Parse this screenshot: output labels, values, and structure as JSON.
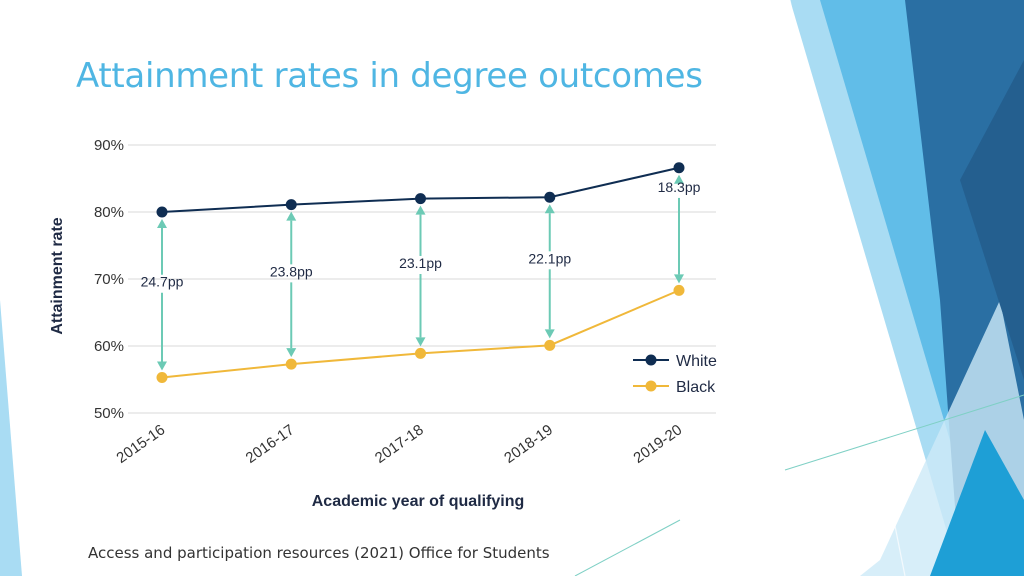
{
  "slide": {
    "title": "Attainment rates in degree outcomes",
    "footer": "Access and participation resources (2021) Office for Students"
  },
  "theme": {
    "title_color": "#4fb6e3",
    "white_series_color": "#0f2d52",
    "black_series_color": "#f0b83a",
    "arrow_color": "#6ccab5",
    "gridline_color": "#d9d9d9",
    "decor_light": "#a9dcf3",
    "decor_mid": "#55b7e5",
    "decor_dark": "#2a6fa3"
  },
  "chart_data": {
    "type": "line",
    "title": "",
    "xlabel": "Academic year of qualifying",
    "ylabel": "Attainment rate",
    "ylim": [
      50,
      90
    ],
    "yticks": [
      50,
      60,
      70,
      80,
      90
    ],
    "ytick_labels": [
      "50%",
      "60%",
      "70%",
      "80%",
      "90%"
    ],
    "categories": [
      "2015-16",
      "2016-17",
      "2017-18",
      "2018-19",
      "2019-20"
    ],
    "series": [
      {
        "name": "White",
        "values": [
          80.0,
          81.1,
          82.0,
          82.2,
          86.6
        ]
      },
      {
        "name": "Black",
        "values": [
          55.3,
          57.3,
          58.9,
          60.1,
          68.3
        ]
      }
    ],
    "gap_labels": [
      "24.7pp",
      "23.8pp",
      "23.1pp",
      "22.1pp",
      "18.3pp"
    ],
    "grid": true,
    "legend_position": "lower-right"
  }
}
